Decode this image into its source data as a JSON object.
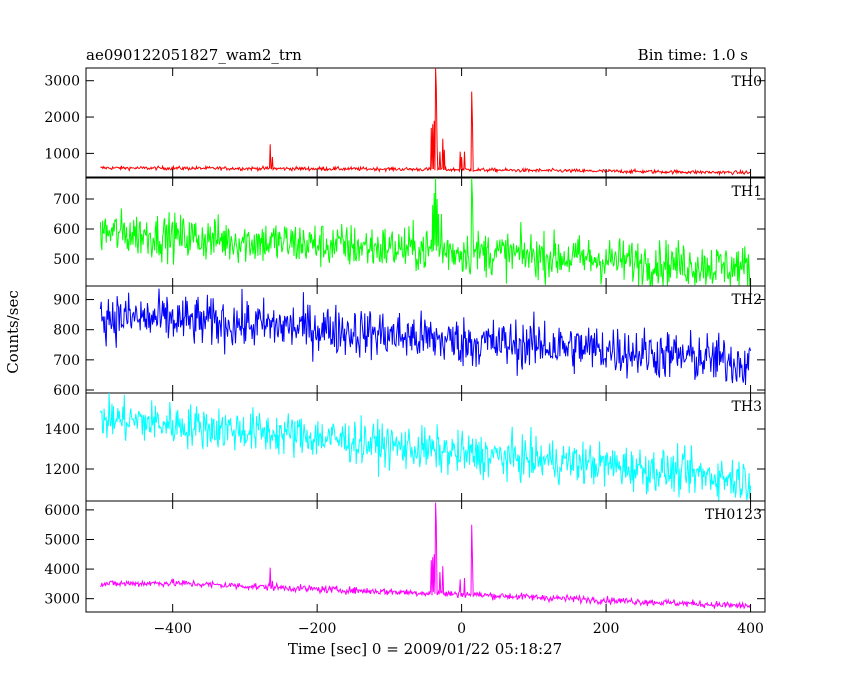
{
  "header": {
    "title": "ae090122051827_wam2_trn",
    "bin_time": "Bin time: 1.0 s"
  },
  "chart_data": {
    "type": "line",
    "xlabel": "Time [sec] 0 = 2009/01/22 05:18:27",
    "ylabel": "Counts/sec",
    "xlim": [
      -520,
      420
    ],
    "x_ticks": [
      -400,
      -200,
      0,
      200,
      400
    ],
    "x_range": [
      -500,
      400
    ],
    "grid": false,
    "panels": [
      {
        "name": "TH0",
        "color": "#ff0000",
        "ylim": [
          350,
          3350
        ],
        "y_ticks": [
          1000,
          2000,
          3000
        ],
        "trend": [
          [
            -500,
            600
          ],
          [
            -100,
            570
          ],
          [
            400,
            470
          ]
        ],
        "noise": 25,
        "spikes": [
          [
            -265,
            1250
          ],
          [
            -262,
            900
          ],
          [
            -42,
            1700
          ],
          [
            -40,
            1800
          ],
          [
            -38,
            1900
          ],
          [
            -36,
            3350
          ],
          [
            -35,
            2800
          ],
          [
            -34,
            1200
          ],
          [
            -30,
            1050
          ],
          [
            -26,
            1400
          ],
          [
            -24,
            1100
          ],
          [
            -2,
            1050
          ],
          [
            0,
            900
          ],
          [
            4,
            1050
          ],
          [
            14,
            2700
          ],
          [
            15,
            1800
          ]
        ]
      },
      {
        "name": "TH1",
        "color": "#00ff00",
        "ylim": [
          410,
          770
        ],
        "y_ticks": [
          500,
          600,
          700
        ],
        "trend": [
          [
            -500,
            590
          ],
          [
            -300,
            560
          ],
          [
            0,
            525
          ],
          [
            400,
            470
          ]
        ],
        "noise": 38,
        "spikes": [
          [
            -40,
            680
          ],
          [
            -38,
            720
          ],
          [
            -36,
            770
          ],
          [
            -34,
            700
          ],
          [
            -32,
            650
          ],
          [
            -28,
            650
          ],
          [
            14,
            770
          ],
          [
            15,
            700
          ]
        ]
      },
      {
        "name": "TH2",
        "color": "#0000ff",
        "ylim": [
          590,
          945
        ],
        "y_ticks": [
          600,
          700,
          800,
          900
        ],
        "trend": [
          [
            -500,
            845
          ],
          [
            -200,
            805
          ],
          [
            0,
            760
          ],
          [
            200,
            735
          ],
          [
            400,
            690
          ]
        ],
        "noise": 42,
        "spikes": [
          [
            115,
            830
          ]
        ]
      },
      {
        "name": "TH3",
        "color": "#00ffff",
        "ylim": [
          1040,
          1580
        ],
        "y_ticks": [
          1200,
          1400
        ],
        "trend": [
          [
            -500,
            1455
          ],
          [
            -200,
            1360
          ],
          [
            0,
            1275
          ],
          [
            200,
            1220
          ],
          [
            400,
            1145
          ]
        ],
        "noise": 55,
        "spikes": []
      },
      {
        "name": "TH0123",
        "color": "#ff00ff",
        "ylim": [
          2550,
          6300
        ],
        "y_ticks": [
          3000,
          4000,
          5000,
          6000
        ],
        "trend": [
          [
            -500,
            3500
          ],
          [
            -400,
            3530
          ],
          [
            -200,
            3320
          ],
          [
            0,
            3150
          ],
          [
            400,
            2750
          ]
        ],
        "noise": 60,
        "spikes": [
          [
            -265,
            4050
          ],
          [
            -262,
            3600
          ],
          [
            -42,
            4300
          ],
          [
            -40,
            4400
          ],
          [
            -38,
            4500
          ],
          [
            -36,
            6250
          ],
          [
            -35,
            5500
          ],
          [
            -30,
            3900
          ],
          [
            -26,
            4100
          ],
          [
            -2,
            3650
          ],
          [
            4,
            3700
          ],
          [
            14,
            5500
          ],
          [
            15,
            4300
          ]
        ]
      }
    ]
  }
}
